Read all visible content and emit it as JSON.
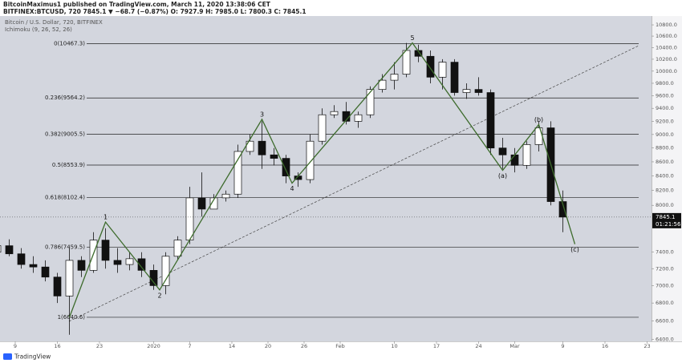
{
  "header": {
    "publisher": "BitcoinMaximus1 published on TradingView.com, March 11, 2020 13:38:06 CET",
    "symbol_line": "BITFINEX:BTCUSD, 720  7845.1  ▼ −68.7 (−0.87%)  O: 7927.9  H: 7985.0  L: 7800.3  C: 7845.1"
  },
  "chart_data": {
    "type": "candlestick",
    "title": "Bitcoin / U.S. Dollar, 720, BITFINEX",
    "subtitle": "Ichimoku (9, 26, 52, 26)",
    "log_scale": true,
    "up_color": "#ffffff",
    "down_color": "#111111",
    "x": [
      "2019-12-02",
      "2019-12-04",
      "2019-12-06",
      "2019-12-08",
      "2019-12-10",
      "2019-12-12",
      "2019-12-14",
      "2019-12-16",
      "2019-12-18",
      "2019-12-20",
      "2019-12-22",
      "2019-12-24",
      "2019-12-26",
      "2019-12-28",
      "2019-12-30",
      "2020-01-01",
      "2020-01-03",
      "2020-01-05",
      "2020-01-07",
      "2020-01-09",
      "2020-01-11",
      "2020-01-13",
      "2020-01-15",
      "2020-01-17",
      "2020-01-19",
      "2020-01-21",
      "2020-01-23",
      "2020-01-25",
      "2020-01-27",
      "2020-01-29",
      "2020-01-31",
      "2020-02-02",
      "2020-02-04",
      "2020-02-06",
      "2020-02-08",
      "2020-02-10",
      "2020-02-12",
      "2020-02-14",
      "2020-02-16",
      "2020-02-18",
      "2020-02-20",
      "2020-02-22",
      "2020-02-24",
      "2020-02-26",
      "2020-02-28",
      "2020-03-01",
      "2020-03-03",
      "2020-03-05",
      "2020-03-07",
      "2020-03-09"
    ],
    "open": [
      7550,
      7500,
      7400,
      7480,
      7380,
      7250,
      7220,
      7100,
      6880,
      7300,
      7180,
      7550,
      7300,
      7250,
      7320,
      7180,
      7000,
      7350,
      7550,
      8100,
      7950,
      8100,
      8150,
      8750,
      8900,
      8700,
      8650,
      8400,
      8350,
      8900,
      9300,
      9350,
      9200,
      9300,
      9700,
      9850,
      9950,
      10350,
      10250,
      9900,
      10150,
      9650,
      9700,
      9650,
      8800,
      8700,
      8550,
      8850,
      9100,
      8050
    ],
    "high": [
      7600,
      7600,
      7550,
      7560,
      7450,
      7350,
      7300,
      7150,
      7450,
      7350,
      7650,
      7700,
      7450,
      7400,
      7400,
      7250,
      7400,
      7600,
      8250,
      8450,
      8150,
      8200,
      8850,
      9000,
      9200,
      8800,
      8700,
      8450,
      9000,
      9400,
      9450,
      9500,
      9350,
      9750,
      9950,
      10150,
      10480,
      10450,
      10350,
      10200,
      10200,
      9800,
      9900,
      9700,
      8950,
      8800,
      8900,
      9200,
      9200,
      8200
    ],
    "low": [
      7450,
      7350,
      7300,
      7350,
      7200,
      7150,
      7050,
      6800,
      6450,
      7100,
      7150,
      7200,
      7150,
      7180,
      7100,
      6950,
      6900,
      7300,
      7500,
      7850,
      7950,
      8050,
      8100,
      8700,
      8500,
      8550,
      8300,
      8250,
      8300,
      8850,
      9250,
      9150,
      9100,
      9250,
      9650,
      9700,
      9900,
      10150,
      9800,
      9700,
      9600,
      9550,
      9600,
      8700,
      8500,
      8450,
      8500,
      8750,
      8000,
      7650
    ],
    "close": [
      7500,
      7400,
      7480,
      7380,
      7250,
      7220,
      7100,
      6880,
      7300,
      7180,
      7550,
      7300,
      7250,
      7320,
      7180,
      7000,
      7350,
      7550,
      8100,
      7950,
      8100,
      8150,
      8750,
      8900,
      8700,
      8650,
      8400,
      8350,
      8900,
      9300,
      9350,
      9200,
      9300,
      9700,
      9850,
      9950,
      10350,
      10250,
      9900,
      10150,
      9650,
      9700,
      9650,
      8800,
      8700,
      8550,
      8850,
      9100,
      8050,
      7845.1
    ],
    "ylim": [
      6380,
      10960
    ],
    "yticks": [
      {
        "value": 10800,
        "label": "10800.0"
      },
      {
        "value": 10600,
        "label": "10600.0"
      },
      {
        "value": 10400,
        "label": "10400.0"
      },
      {
        "value": 10200,
        "label": "10200.0"
      },
      {
        "value": 10000,
        "label": "10000.0"
      },
      {
        "value": 9800,
        "label": "9800.0"
      },
      {
        "value": 9600,
        "label": "9600.0"
      },
      {
        "value": 9400,
        "label": "9400.0"
      },
      {
        "value": 9200,
        "label": "9200.0"
      },
      {
        "value": 9000,
        "label": "9000.0"
      },
      {
        "value": 8800,
        "label": "8800.0"
      },
      {
        "value": 8600,
        "label": "8600.0"
      },
      {
        "value": 8400,
        "label": "8400.0"
      },
      {
        "value": 8200,
        "label": "8200.0"
      },
      {
        "value": 8000,
        "label": "8000.0"
      },
      {
        "value": 7400,
        "label": "7400.0"
      },
      {
        "value": 7200,
        "label": "7200.0"
      },
      {
        "value": 7000,
        "label": "7000.0"
      },
      {
        "value": 6800,
        "label": "6800.0"
      },
      {
        "value": 6600,
        "label": "6600.0"
      },
      {
        "value": 6400,
        "label": "6400.0"
      }
    ],
    "xticks": [
      {
        "value": "2019-12-09",
        "label": "9"
      },
      {
        "value": "2019-12-16",
        "label": "16"
      },
      {
        "value": "2019-12-23",
        "label": "23"
      },
      {
        "value": "2020-01-01",
        "label": "2020"
      },
      {
        "value": "2020-01-07",
        "label": "7"
      },
      {
        "value": "2020-01-14",
        "label": "14"
      },
      {
        "value": "2020-01-20",
        "label": "20"
      },
      {
        "value": "2020-01-26",
        "label": "26"
      },
      {
        "value": "2020-02-01",
        "label": "Feb"
      },
      {
        "value": "2020-02-10",
        "label": "10"
      },
      {
        "value": "2020-02-17",
        "label": "17"
      },
      {
        "value": "2020-02-24",
        "label": "24"
      },
      {
        "value": "2020-03-01",
        "label": "Mar"
      },
      {
        "value": "2020-03-09",
        "label": "9"
      },
      {
        "value": "2020-03-16",
        "label": "16"
      },
      {
        "value": "2020-03-23",
        "label": "23"
      }
    ],
    "fib_levels": [
      {
        "value": 10467.3,
        "label": "0(10467.3)"
      },
      {
        "value": 9564.2,
        "label": "0.236(9564.2)"
      },
      {
        "value": 9005.5,
        "label": "0.382(9005.5)"
      },
      {
        "value": 8553.9,
        "label": "0.5(8553.9)"
      },
      {
        "value": 8102.4,
        "label": "0.618(8102.4)"
      },
      {
        "value": 7459.5,
        "label": "0.786(7459.5)"
      },
      {
        "value": 6640.6,
        "label": "1(6640.6)"
      }
    ],
    "waves": {
      "color": "#3d6b2c",
      "x": [
        "2019-12-18",
        "2019-12-24",
        "2020-01-02",
        "2020-01-19",
        "2020-01-24",
        "2020-02-13",
        "2020-02-28",
        "2020-03-05",
        "2020-03-11"
      ],
      "values": [
        6640.6,
        7780,
        6950,
        9230,
        8300,
        10480,
        8480,
        9150,
        7500
      ],
      "labels": [
        null,
        "1",
        "2",
        "3",
        "4",
        "5",
        "(a)",
        "(b)",
        "(c)"
      ]
    },
    "current_price": 7845.1,
    "countdown": "01:21:56"
  },
  "footer": {
    "brand": "TradingView"
  }
}
